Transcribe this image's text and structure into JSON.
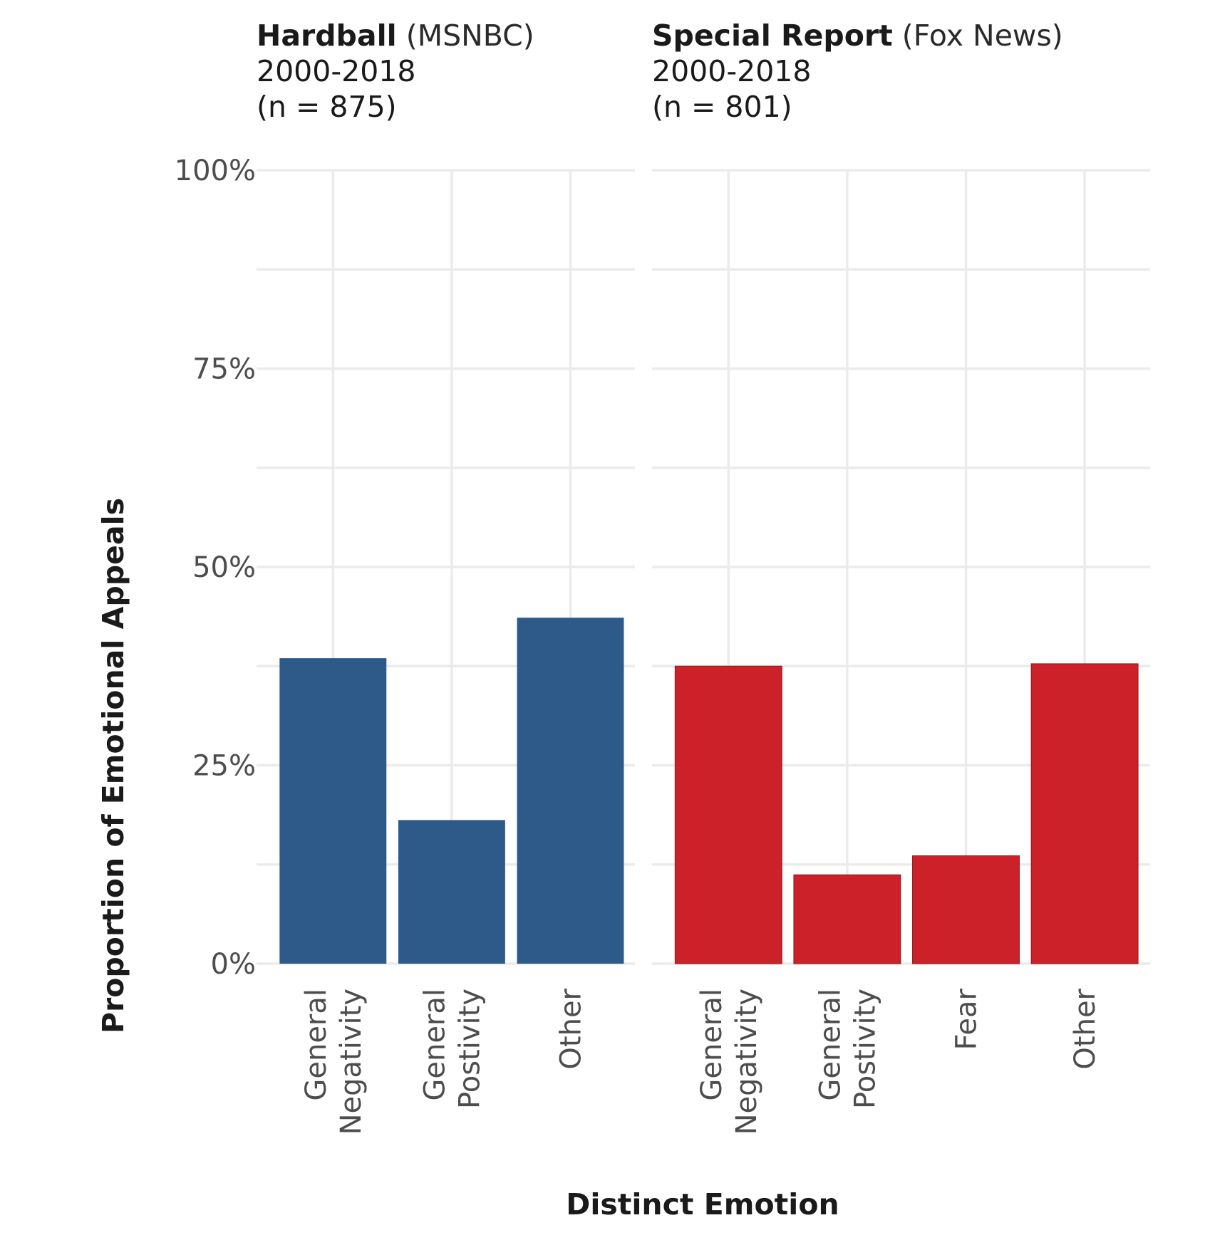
{
  "chart_data": {
    "type": "bar",
    "xlabel": "Distinct Emotion",
    "ylabel": "Proportion of Emotional Appeals",
    "ylim": [
      0,
      1
    ],
    "y_ticks": [
      {
        "value": 0,
        "label": "0%"
      },
      {
        "value": 0.25,
        "label": "25%"
      },
      {
        "value": 0.5,
        "label": "50%"
      },
      {
        "value": 0.75,
        "label": "75%"
      },
      {
        "value": 1,
        "label": "100%"
      }
    ],
    "grid": true,
    "facets": [
      {
        "title_bold": "Hardball",
        "title_rest": " (MSNBC)",
        "line2": "2000-2018",
        "line3": "(n = 875)",
        "color": "#2e5a8a",
        "categories": [
          {
            "lines": [
              "General",
              "Negativity"
            ]
          },
          {
            "lines": [
              "General",
              "Postivity"
            ]
          },
          {
            "lines": [
              "Other"
            ]
          }
        ],
        "values": [
          0.385,
          0.181,
          0.436
        ]
      },
      {
        "title_bold": "Special Report",
        "title_rest": " (Fox News)",
        "line2": "2000-2018",
        "line3": "(n = 801)",
        "color": "#cc2128",
        "categories": [
          {
            "lines": [
              "General",
              "Negativity"
            ]
          },
          {
            "lines": [
              "General",
              "Postivity"
            ]
          },
          {
            "lines": [
              "Fear"
            ]
          },
          {
            "lines": [
              "Other"
            ]
          }
        ],
        "values": [
          0.375,
          0.112,
          0.136,
          0.378
        ]
      }
    ]
  }
}
